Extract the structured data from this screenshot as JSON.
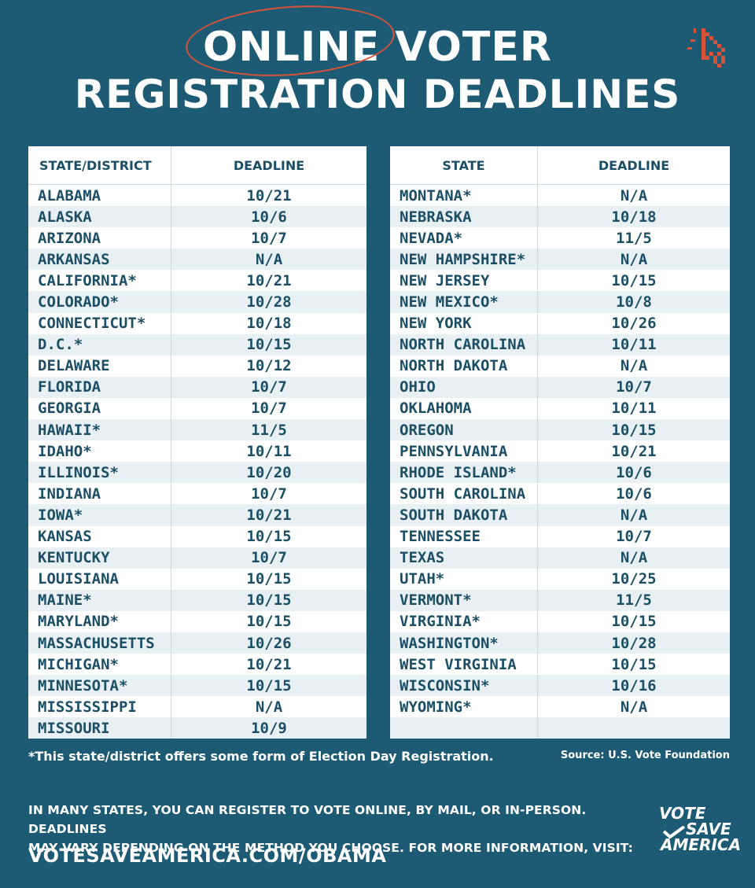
{
  "title": {
    "line1": "ONLINE VOTER",
    "line2": "REGISTRATION DEADLINES"
  },
  "left_table": {
    "headers": [
      "STATE/DISTRICT",
      "DEADLINE"
    ],
    "rows": [
      [
        "ALABAMA",
        "10/21"
      ],
      [
        "ALASKA",
        "10/6"
      ],
      [
        "ARIZONA",
        "10/7"
      ],
      [
        "ARKANSAS",
        "N/A"
      ],
      [
        "CALIFORNIA*",
        "10/21"
      ],
      [
        "COLORADO*",
        "10/28"
      ],
      [
        "CONNECTICUT*",
        "10/18"
      ],
      [
        "D.C.*",
        "10/15"
      ],
      [
        "DELAWARE",
        "10/12"
      ],
      [
        "FLORIDA",
        "10/7"
      ],
      [
        "GEORGIA",
        "10/7"
      ],
      [
        "HAWAII*",
        "11/5"
      ],
      [
        "IDAHO*",
        "10/11"
      ],
      [
        "ILLINOIS*",
        "10/20"
      ],
      [
        "INDIANA",
        "10/7"
      ],
      [
        "IOWA*",
        "10/21"
      ],
      [
        "KANSAS",
        "10/15"
      ],
      [
        "KENTUCKY",
        "10/7"
      ],
      [
        "LOUISIANA",
        "10/15"
      ],
      [
        "MAINE*",
        "10/15"
      ],
      [
        "MARYLAND*",
        "10/15"
      ],
      [
        "MASSACHUSETTS",
        "10/26"
      ],
      [
        "MICHIGAN*",
        "10/21"
      ],
      [
        "MINNESOTA*",
        "10/15"
      ],
      [
        "MISSISSIPPI",
        "N/A"
      ],
      [
        "MISSOURI",
        "10/9"
      ]
    ]
  },
  "right_table": {
    "headers": [
      "STATE",
      "DEADLINE"
    ],
    "rows": [
      [
        "MONTANA*",
        "N/A"
      ],
      [
        "NEBRASKA",
        "10/18"
      ],
      [
        "NEVADA*",
        "11/5"
      ],
      [
        "NEW HAMPSHIRE*",
        "N/A"
      ],
      [
        "NEW JERSEY",
        "10/15"
      ],
      [
        "NEW MEXICO*",
        "10/8"
      ],
      [
        "NEW YORK",
        "10/26"
      ],
      [
        "NORTH CAROLINA",
        "10/11"
      ],
      [
        "NORTH DAKOTA",
        "N/A"
      ],
      [
        "OHIO",
        "10/7"
      ],
      [
        "OKLAHOMA",
        "10/11"
      ],
      [
        "OREGON",
        "10/15"
      ],
      [
        "PENNSYLVANIA",
        "10/21"
      ],
      [
        "RHODE ISLAND*",
        "10/6"
      ],
      [
        "SOUTH CAROLINA",
        "10/6"
      ],
      [
        "SOUTH DAKOTA",
        "N/A"
      ],
      [
        "TENNESSEE",
        "10/7"
      ],
      [
        "TEXAS",
        "N/A"
      ],
      [
        "UTAH*",
        "10/25"
      ],
      [
        "VERMONT*",
        "11/5"
      ],
      [
        "VIRGINIA*",
        "10/15"
      ],
      [
        "WASHINGTON*",
        "10/28"
      ],
      [
        "WEST VIRGINIA",
        "10/15"
      ],
      [
        "WISCONSIN*",
        "10/16"
      ],
      [
        "WYOMING*",
        "N/A"
      ],
      [
        "",
        ""
      ]
    ]
  },
  "footnote": "*This state/district offers some form of Election Day Registration.",
  "source": "Source: U.S. Vote Foundation",
  "info": {
    "line1": "IN MANY STATES, YOU CAN REGISTER TO VOTE ONLINE, BY MAIL, OR IN-PERSON. DEADLINES",
    "line2": "MAY VARY DEPENDING ON THE METHOD YOU CHOOSE. FOR MORE INFORMATION, VISIT:"
  },
  "url": "VOTESAVEAMERICA.COM/OBAMA",
  "logo": {
    "word1": "VOTE",
    "word2": "SAVE",
    "word3": "AMERICA"
  },
  "colors": {
    "background": "#1d5a74",
    "table_text": "#1c4f66",
    "row_stripe": "#e8f0f4",
    "circle_accent": "#d9533a"
  },
  "icons": {
    "cursor": "cursor-click-icon",
    "checkmark": "checkmark-icon"
  }
}
